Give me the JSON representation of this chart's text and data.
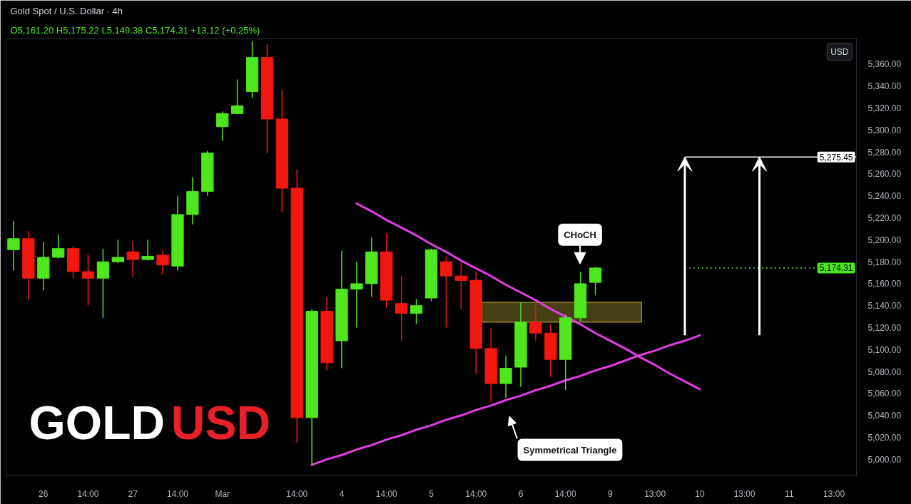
{
  "chart_data": {
    "type": "candlestick",
    "title": "Gold Spot / U.S. Dollar · 4h",
    "subtitle": "O5,161.20  H5,175.22  L5,149.38  C5,174.31  +13.12 (+0.25%)",
    "ylabel": "USD",
    "categories": [
      null,
      null,
      "26",
      null,
      null,
      "14:00",
      null,
      null,
      "27",
      null,
      null,
      "14:00",
      null,
      null,
      "Mar",
      null,
      null,
      null,
      null,
      "14:00",
      null,
      null,
      "4",
      null,
      null,
      "14:00",
      null,
      null,
      "5",
      null,
      null,
      "14:00",
      null,
      null,
      "6",
      null,
      null,
      "14:00",
      null,
      null,
      "9",
      null,
      null,
      "13:00",
      null,
      null,
      "10",
      null,
      null,
      "13:00",
      null,
      null,
      "11",
      null,
      null,
      "13:00",
      null
    ],
    "ohlc": [
      [
        5191,
        5217,
        5172,
        5201
      ],
      [
        5201,
        5208,
        5145,
        5165
      ],
      [
        5165,
        5198,
        5154,
        5184
      ],
      [
        5184,
        5205,
        5183,
        5192
      ],
      [
        5192,
        5194,
        5165,
        5171
      ],
      [
        5171,
        5187,
        5140,
        5165
      ],
      [
        5165,
        5192,
        5129,
        5180
      ],
      [
        5180,
        5200,
        5179,
        5184
      ],
      [
        5189,
        5199,
        5166,
        5182
      ],
      [
        5182,
        5200,
        5181,
        5185
      ],
      [
        5186,
        5190,
        5168,
        5177
      ],
      [
        5176,
        5240,
        5172,
        5223
      ],
      [
        5223,
        5257,
        5214,
        5244
      ],
      [
        5244,
        5281,
        5240,
        5279
      ],
      [
        5303,
        5317,
        5290,
        5315
      ],
      [
        5315,
        5346,
        5314,
        5322
      ],
      [
        5335,
        5381,
        5329,
        5366
      ],
      [
        5366,
        5378,
        5279,
        5310
      ],
      [
        5310,
        5337,
        5225,
        5247
      ],
      [
        5247,
        5264,
        5015,
        5038
      ],
      [
        5038,
        5137,
        4995,
        5135
      ],
      [
        5135,
        5148,
        5081,
        5088
      ],
      [
        5108,
        5190,
        5083,
        5155
      ],
      [
        5155,
        5180,
        5120,
        5160
      ],
      [
        5160,
        5202,
        5148,
        5189
      ],
      [
        5189,
        5206,
        5138,
        5145
      ],
      [
        5142,
        5167,
        5108,
        5133
      ],
      [
        5133,
        5146,
        5123,
        5140
      ],
      [
        5147,
        5192,
        5144,
        5191
      ],
      [
        5180,
        5185,
        5120,
        5167
      ],
      [
        5167,
        5179,
        5137,
        5163
      ],
      [
        5163,
        5171,
        5078,
        5101
      ],
      [
        5101,
        5120,
        5052,
        5069
      ],
      [
        5069,
        5094,
        5056,
        5083
      ],
      [
        5084,
        5143,
        5066,
        5125
      ],
      [
        5125,
        5141,
        5108,
        5115
      ],
      [
        5115,
        5123,
        5075,
        5091
      ],
      [
        5091,
        5132,
        5063,
        5129
      ],
      [
        5129,
        5171,
        5126,
        5160
      ],
      [
        5161.2,
        5175.22,
        5149.38,
        5174.31
      ],
      null,
      null,
      null,
      null,
      null,
      null,
      null,
      null,
      null,
      null,
      null,
      null,
      null,
      null,
      null,
      null,
      null
    ],
    "colors": [
      "#4ee61c",
      "#f2170f",
      "#4ee61c",
      "#4ee61c",
      "#f2170f",
      "#f2170f",
      "#4ee61c",
      "#4ee61c",
      "#f2170f",
      "#4ee61c",
      "#f2170f",
      "#4ee61c",
      "#4ee61c",
      "#4ee61c",
      "#4ee61c",
      "#4ee61c",
      "#4ee61c",
      "#f2170f",
      "#f2170f",
      "#f2170f",
      "#4ee61c",
      "#f2170f",
      "#4ee61c",
      "#4ee61c",
      "#4ee61c",
      "#f2170f",
      "#f2170f",
      "#4ee61c",
      "#4ee61c",
      "#f2170f",
      "#f2170f",
      "#f2170f",
      "#f2170f",
      "#4ee61c",
      "#4ee61c",
      "#f2170f",
      "#f2170f",
      "#4ee61c",
      "#4ee61c",
      "#4ee61c",
      null,
      null,
      null,
      null,
      null,
      null,
      null,
      null,
      null,
      null,
      null,
      null,
      null,
      null,
      null,
      null,
      null
    ],
    "series": [
      {
        "type": "line",
        "color": "#e03ee0",
        "values": [
          null,
          null,
          null,
          null,
          null,
          null,
          null,
          null,
          null,
          null,
          null,
          null,
          null,
          null,
          null,
          null,
          null,
          null,
          null,
          null,
          null,
          null,
          null,
          5233,
          5226,
          5218,
          5211,
          5204,
          5196,
          5189,
          5181,
          5174,
          5167,
          5159,
          5152,
          5145,
          5137,
          5130,
          5123,
          5115,
          5108,
          5101,
          5093,
          5086,
          5078,
          5071,
          5064,
          null,
          null,
          null,
          null,
          null,
          null,
          null,
          null,
          null,
          null
        ]
      },
      {
        "type": "line",
        "color": "#e03ee0",
        "values": [
          null,
          null,
          null,
          null,
          null,
          null,
          null,
          null,
          null,
          null,
          null,
          null,
          null,
          null,
          null,
          null,
          null,
          null,
          null,
          null,
          4995,
          5000,
          5004,
          5009,
          5013,
          5018,
          5022,
          5027,
          5031,
          5036,
          5040,
          5045,
          5049,
          5054,
          5058,
          5063,
          5067,
          5072,
          5076,
          5081,
          5085,
          5090,
          5095,
          5099,
          5104,
          5108,
          5113,
          null,
          null,
          null,
          null,
          null,
          null,
          null,
          null,
          null,
          null
        ]
      }
    ],
    "bands": [
      {
        "axis": "y",
        "from": 5125,
        "to": 5143,
        "color": "#a8962e"
      }
    ],
    "ylim": [
      4985,
      5383
    ],
    "yticks": [
      {
        "value": 5000,
        "label": "5,000.00"
      },
      {
        "value": 5020,
        "label": "5,020.00"
      },
      {
        "value": 5040,
        "label": "5,040.00"
      },
      {
        "value": 5060,
        "label": "5,060.00"
      },
      {
        "value": 5080,
        "label": "5,080.00"
      },
      {
        "value": 5100,
        "label": "5,100.00"
      },
      {
        "value": 5120,
        "label": "5,120.00"
      },
      {
        "value": 5140,
        "label": "5,140.00"
      },
      {
        "value": 5160,
        "label": "5,160.00"
      },
      {
        "value": 5180,
        "label": "5,180.00"
      },
      {
        "value": 5200,
        "label": "5,200.00"
      },
      {
        "value": 5220,
        "label": "5,220.00"
      },
      {
        "value": 5240,
        "label": "5,240.00"
      },
      {
        "value": 5260,
        "label": "5,260.00"
      },
      {
        "value": 5280,
        "label": "5,280.00"
      },
      {
        "value": 5300,
        "label": "5,300.00"
      },
      {
        "value": 5320,
        "label": "5,320.00"
      },
      {
        "value": 5340,
        "label": "5,340.00"
      },
      {
        "value": 5360,
        "label": "5,360.00"
      }
    ],
    "ref_lines": [
      {
        "axis": "y",
        "value": 5275.45,
        "label": "5,275.45",
        "color": "#ffffff"
      },
      {
        "axis": "y",
        "value": 5174.31,
        "label": "5,174.31",
        "color": "#4ee61c",
        "line_style": "dotted"
      }
    ],
    "annotations": [
      "CHoCH",
      "Symmetrical Triangle",
      "GOLD",
      "USD"
    ]
  }
}
